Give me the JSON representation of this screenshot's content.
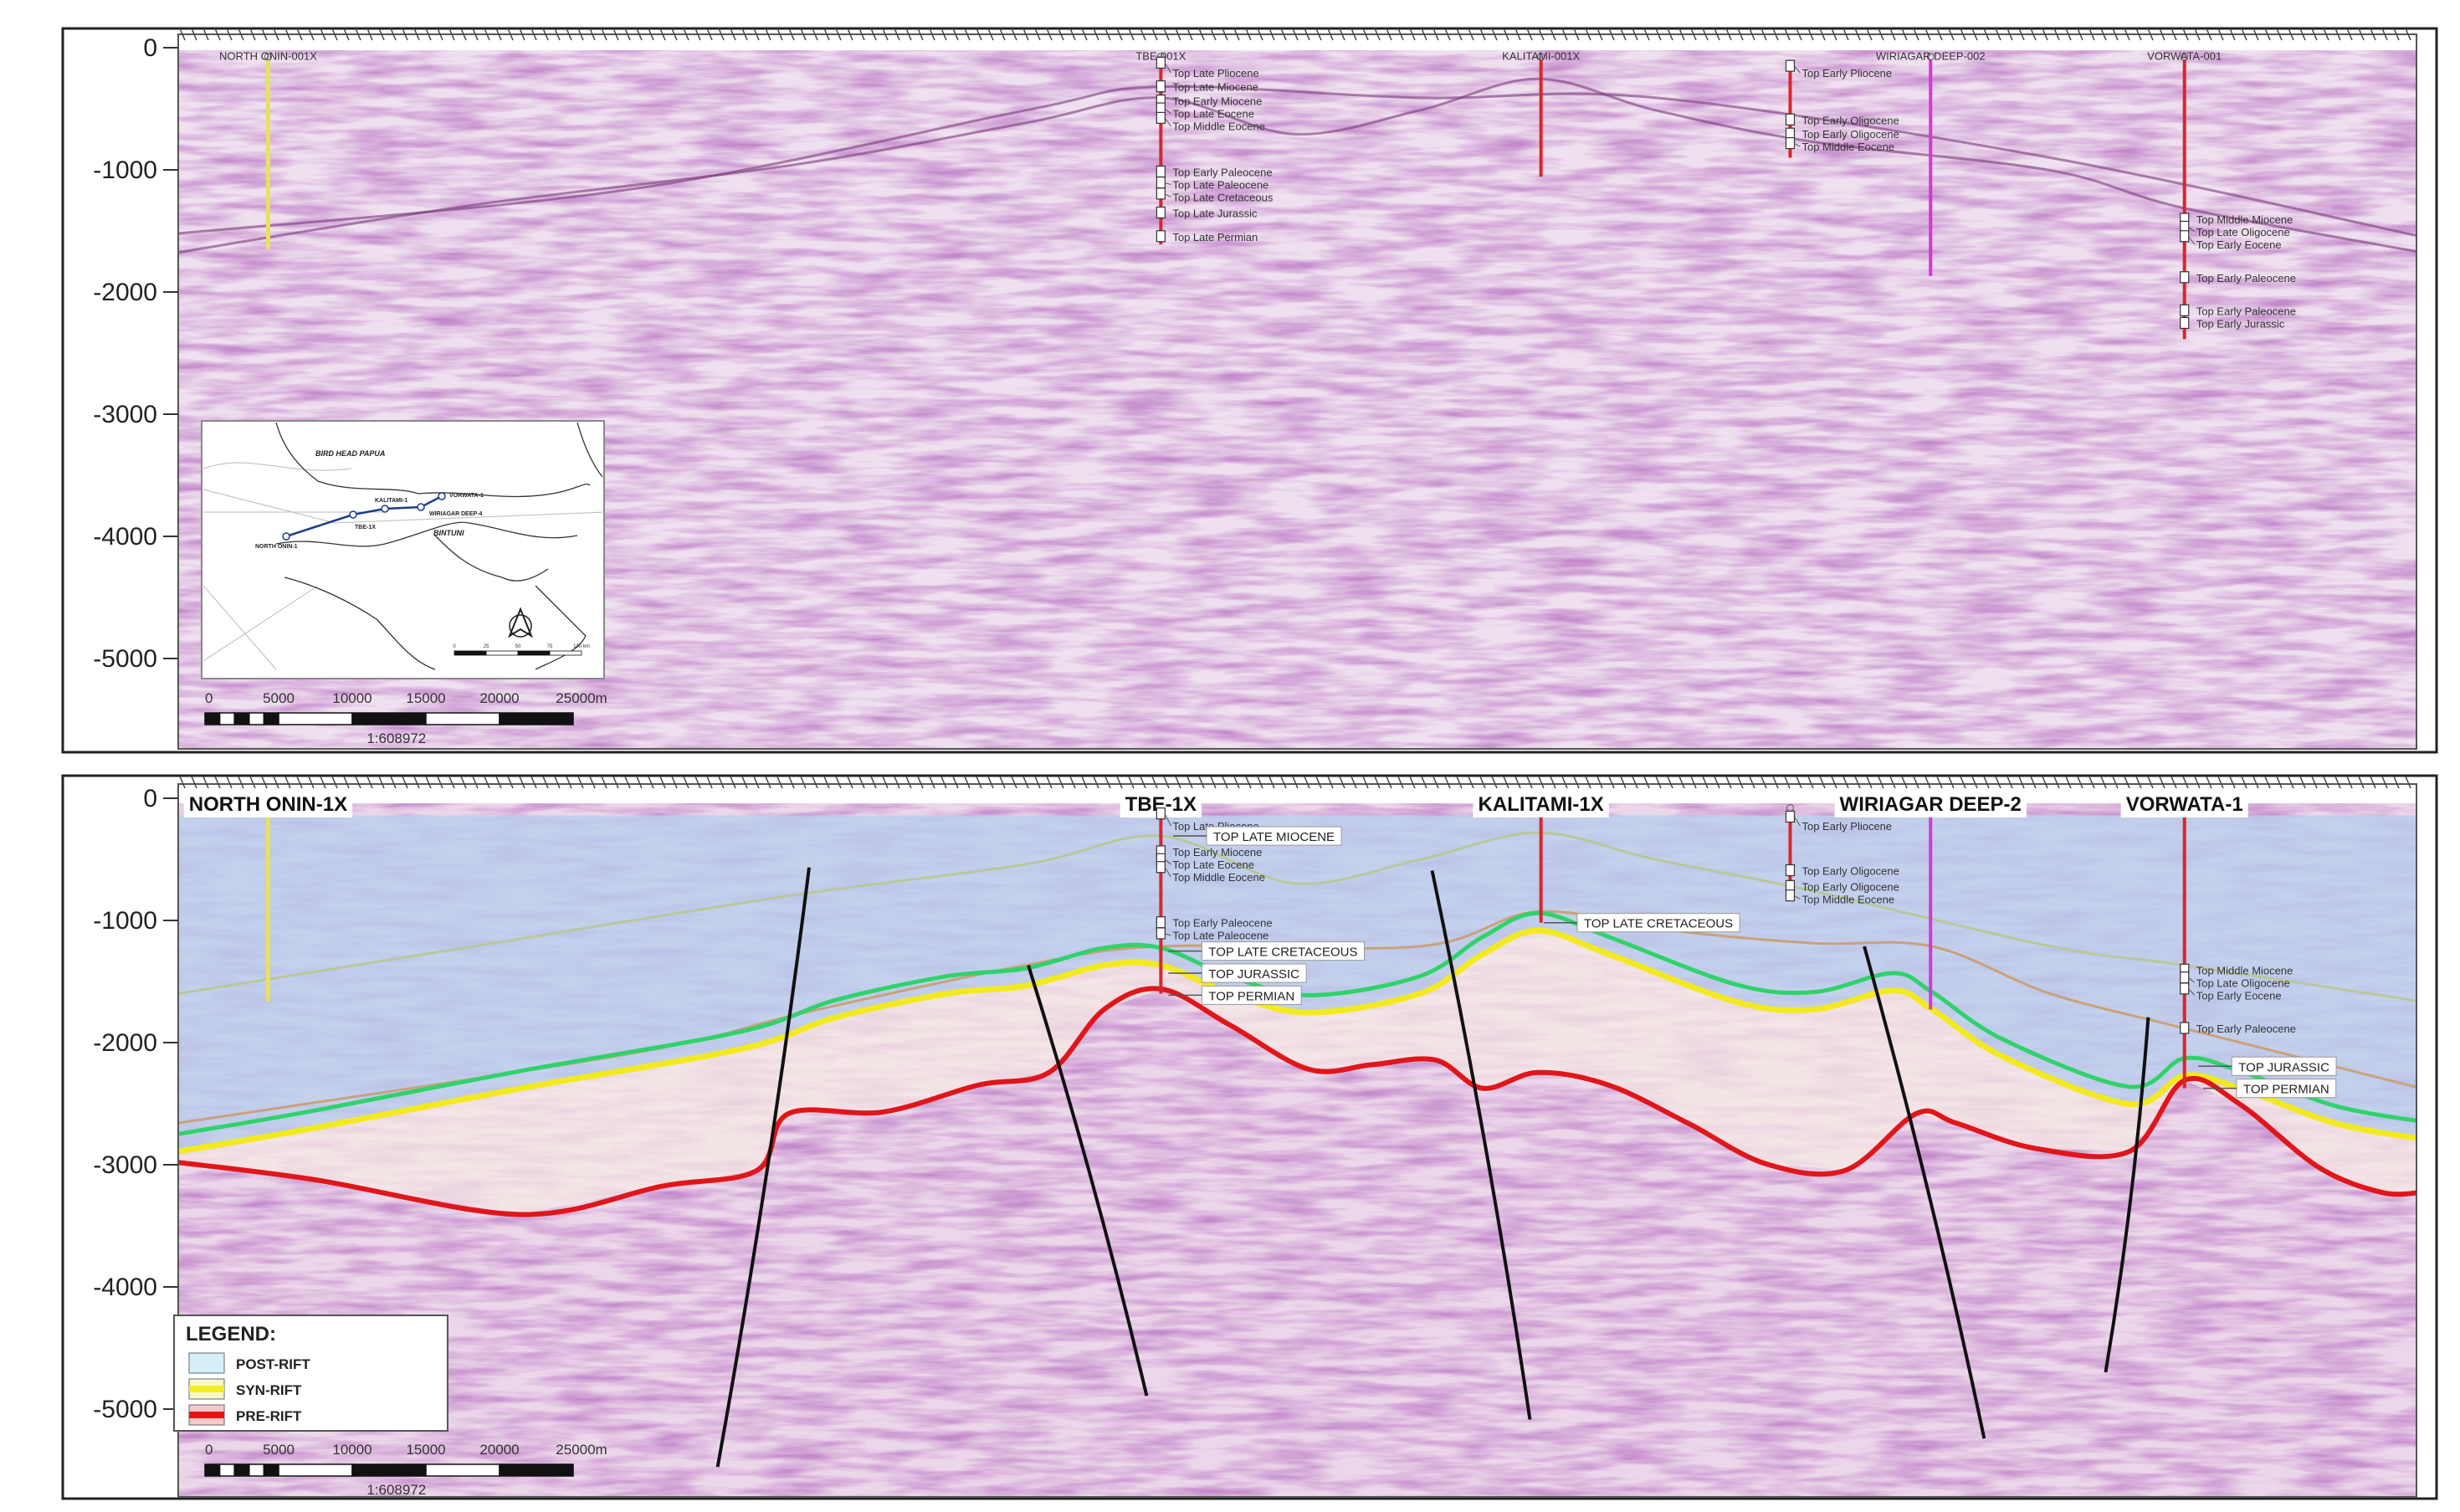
{
  "y_axis": {
    "ticks": [
      "0",
      "-1000",
      "-2000",
      "-3000",
      "-4000",
      "-5000"
    ],
    "tick_values": [
      0,
      -1000,
      -2000,
      -3000,
      -4000,
      -5000
    ]
  },
  "colors": {
    "post_rift": "#bcd3ee",
    "syn_rift": "#f3e6e6",
    "syn_rift_line": "#f2ea1e",
    "pre_rift_line": "#e0161a",
    "top_cretaceous_line": "#2fd36a",
    "well_red": "#d9262b",
    "well_magenta": "#d638d0",
    "well_yellow": "#e8e060",
    "fault": "#111111"
  },
  "top_panel": {
    "wells": [
      {
        "name": "NORTH ONIN-001X",
        "color": "yellow"
      },
      {
        "name": "TBE-001X",
        "color": "red"
      },
      {
        "name": "KALITAMI-001X",
        "color": "red"
      },
      {
        "name": "",
        "color": "red"
      },
      {
        "name": "WIRIAGAR DEEP-002",
        "color": "magenta"
      },
      {
        "name": "VORWATA-001",
        "color": "red"
      }
    ],
    "formation_tops": {
      "tbe": [
        "Top Late Pliocene",
        "Top Late Miocene",
        "Top Early Miocene",
        "Top Late Eocene",
        "Top Middle Eocene",
        "Top Early Paleocene",
        "Top Late Paleocene",
        "Top Late Cretaceous",
        "Top Late Jurassic",
        "Top Late Permian"
      ],
      "wiriagar_side": [
        "Top Early Pliocene",
        "Top Early Oligocene",
        "Top Early Oligocene",
        "Top Middle Eocene"
      ],
      "vorwata": [
        "Top Middle Miocene",
        "Top Late Oligocene",
        "Top Early Eocene",
        "Top Early Paleocene",
        "Top Early Paleocene",
        "Top Early Jurassic"
      ]
    },
    "map": {
      "region_label": "BIRD HEAD PAPUA",
      "basin_label": "BINTUNI",
      "wells": [
        "NORTH ONIN-1",
        "TBE-1X",
        "KALITAMI-1",
        "WIRIAGAR DEEP-4",
        "VORWATA-1"
      ],
      "scale_labels": [
        "0",
        "25",
        "50",
        "75",
        "100 km"
      ]
    },
    "scale_bar": {
      "labels": [
        "0",
        "5000",
        "10000",
        "15000",
        "20000",
        "25000m"
      ],
      "ratio": "1:608972"
    }
  },
  "bottom_panel": {
    "wells": [
      {
        "name": "NORTH ONIN-1X",
        "color": "yellow"
      },
      {
        "name": "TBE-1X",
        "color": "red"
      },
      {
        "name": "KALITAMI-1X",
        "color": "red"
      },
      {
        "name": "",
        "color": "red"
      },
      {
        "name": "WIRIAGAR DEEP-2",
        "color": "magenta"
      },
      {
        "name": "VORWATA-1",
        "color": "red"
      }
    ],
    "formation_tops": {
      "tbe": [
        "Top Late Pliocene",
        "Top Early Miocene",
        "Top Late Eocene",
        "Top Middle Eocene",
        "Top Early Paleocene",
        "Top Late Paleocene"
      ],
      "wiriagar_side": [
        "Top Early Pliocene",
        "Top Early Oligocene",
        "Top Early Oligocene",
        "Top Middle Eocene"
      ],
      "vorwata": [
        "Top Middle Miocene",
        "Top Late Oligocene",
        "Top Early Eocene",
        "Top Early Paleocene"
      ]
    },
    "interpretation_labels": {
      "tbe_late_miocene": "TOP LATE MIOCENE",
      "tbe_late_cretaceous": "TOP LATE CRETACEOUS",
      "tbe_jurassic": "TOP JURASSIC",
      "tbe_permian": "TOP PERMIAN",
      "kalitami_late_cretaceous": "TOP LATE CRETACEOUS",
      "vorwata_jurassic": "TOP JURASSIC",
      "vorwata_permian": "TOP PERMIAN"
    },
    "legend": {
      "title": "LEGEND:",
      "items": [
        {
          "label": "POST-RIFT",
          "color": "#d4f0f6"
        },
        {
          "label": "SYN-RIFT",
          "color": "#f2ee20"
        },
        {
          "label": "PRE-RIFT",
          "color": "#e0161a"
        }
      ]
    },
    "scale_bar": {
      "labels": [
        "0",
        "5000",
        "10000",
        "15000",
        "20000",
        "25000m"
      ],
      "ratio": "1:608972"
    }
  }
}
